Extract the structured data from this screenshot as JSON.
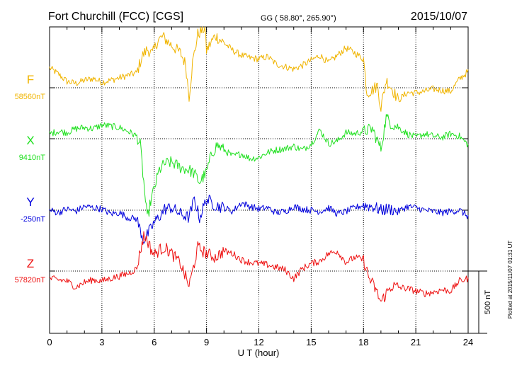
{
  "header": {
    "station": "Fort Churchill (FCC)  [CGS]",
    "coords": "GG ( 58.80°, 265.90°)",
    "date": "2015/10/07"
  },
  "footer": {
    "xlabel": "U T (hour)",
    "plotted": "Plotted at 2015/11/07 01:31  UT"
  },
  "scale": {
    "label": "500 nT",
    "nT": 500
  },
  "chart_data": {
    "type": "line",
    "x_unit": "hour",
    "xlim": [
      0,
      24
    ],
    "xticks": [
      0,
      3,
      6,
      9,
      12,
      15,
      18,
      21,
      24
    ],
    "x_tick_labels": [
      "0",
      "3",
      "6",
      "9",
      "12",
      "15",
      "18",
      "21",
      "24"
    ],
    "grid": true,
    "series": [
      {
        "name": "F",
        "baseline_label": "58560nT",
        "baseline": 58560,
        "color": "#f0b400",
        "points": [
          [
            0,
            160
          ],
          [
            0.5,
            110
          ],
          [
            1,
            50
          ],
          [
            1.5,
            35
          ],
          [
            2,
            60
          ],
          [
            2.5,
            75
          ],
          [
            3,
            45
          ],
          [
            3.5,
            60
          ],
          [
            4,
            80
          ],
          [
            4.5,
            100
          ],
          [
            5,
            120
          ],
          [
            5.3,
            250
          ],
          [
            5.6,
            310
          ],
          [
            5.9,
            270
          ],
          [
            6.2,
            380
          ],
          [
            6.5,
            410
          ],
          [
            7,
            340
          ],
          [
            7.5,
            280
          ],
          [
            7.8,
            190
          ],
          [
            8,
            -70
          ],
          [
            8.2,
            200
          ],
          [
            8.5,
            430
          ],
          [
            8.9,
            480
          ],
          [
            9,
            300
          ],
          [
            9.5,
            420
          ],
          [
            10,
            360
          ],
          [
            10.5,
            300
          ],
          [
            11,
            260
          ],
          [
            11.5,
            240
          ],
          [
            12,
            230
          ],
          [
            12.5,
            250
          ],
          [
            13,
            190
          ],
          [
            13.5,
            170
          ],
          [
            14,
            150
          ],
          [
            14.5,
            180
          ],
          [
            15,
            220
          ],
          [
            15.5,
            260
          ],
          [
            16,
            200
          ],
          [
            16.5,
            260
          ],
          [
            17,
            320
          ],
          [
            17.5,
            280
          ],
          [
            18,
            230
          ],
          [
            18.2,
            -40
          ],
          [
            18.5,
            -20
          ],
          [
            18.8,
            20
          ],
          [
            19,
            -160
          ],
          [
            19.3,
            60
          ],
          [
            19.6,
            0
          ],
          [
            20,
            -100
          ],
          [
            20.5,
            -40
          ],
          [
            21,
            -40
          ],
          [
            21.5,
            -30
          ],
          [
            22,
            -10
          ],
          [
            22.5,
            -20
          ],
          [
            23,
            -30
          ],
          [
            23.5,
            70
          ],
          [
            24,
            130
          ]
        ]
      },
      {
        "name": "X",
        "baseline_label": "9410nT",
        "baseline": 9410,
        "color": "#20e020",
        "points": [
          [
            0,
            40
          ],
          [
            0.5,
            60
          ],
          [
            1,
            50
          ],
          [
            1.5,
            80
          ],
          [
            2,
            90
          ],
          [
            2.5,
            80
          ],
          [
            3,
            110
          ],
          [
            3.5,
            100
          ],
          [
            4,
            90
          ],
          [
            4.5,
            60
          ],
          [
            5,
            20
          ],
          [
            5.2,
            -50
          ],
          [
            5.4,
            -350
          ],
          [
            5.6,
            -650
          ],
          [
            5.8,
            -500
          ],
          [
            6,
            -400
          ],
          [
            6.3,
            -250
          ],
          [
            6.6,
            -200
          ],
          [
            7,
            -190
          ],
          [
            7.5,
            -230
          ],
          [
            8,
            -250
          ],
          [
            8.3,
            -280
          ],
          [
            8.6,
            -350
          ],
          [
            9,
            -270
          ],
          [
            9.3,
            -120
          ],
          [
            9.6,
            -50
          ],
          [
            10,
            -90
          ],
          [
            10.5,
            -140
          ],
          [
            11,
            -120
          ],
          [
            11.5,
            -160
          ],
          [
            12,
            -150
          ],
          [
            12.5,
            -110
          ],
          [
            13,
            -90
          ],
          [
            13.5,
            -80
          ],
          [
            14,
            -60
          ],
          [
            14.5,
            -90
          ],
          [
            15,
            -40
          ],
          [
            15.5,
            70
          ],
          [
            16,
            -40
          ],
          [
            16.5,
            -20
          ],
          [
            17,
            50
          ],
          [
            17.5,
            40
          ],
          [
            18,
            60
          ],
          [
            18.5,
            80
          ],
          [
            19,
            -80
          ],
          [
            19.3,
            170
          ],
          [
            19.6,
            120
          ],
          [
            20,
            90
          ],
          [
            20.5,
            40
          ],
          [
            21,
            10
          ],
          [
            21.5,
            40
          ],
          [
            22,
            20
          ],
          [
            22.5,
            10
          ],
          [
            23,
            40
          ],
          [
            23.5,
            20
          ],
          [
            24,
            -50
          ]
        ]
      },
      {
        "name": "Y",
        "baseline_label": "-250nT",
        "baseline": -250,
        "color": "#0000dd",
        "points": [
          [
            0,
            0
          ],
          [
            0.5,
            -20
          ],
          [
            1,
            10
          ],
          [
            1.5,
            -10
          ],
          [
            2,
            30
          ],
          [
            2.5,
            20
          ],
          [
            3,
            10
          ],
          [
            3.5,
            -30
          ],
          [
            4,
            -20
          ],
          [
            4.5,
            -60
          ],
          [
            5,
            -70
          ],
          [
            5.2,
            -160
          ],
          [
            5.4,
            -240
          ],
          [
            5.6,
            -200
          ],
          [
            5.8,
            -150
          ],
          [
            6,
            -100
          ],
          [
            6.3,
            -50
          ],
          [
            6.6,
            10
          ],
          [
            7,
            20
          ],
          [
            7.5,
            -30
          ],
          [
            8,
            -60
          ],
          [
            8.3,
            90
          ],
          [
            8.6,
            -60
          ],
          [
            9,
            90
          ],
          [
            9.5,
            40
          ],
          [
            10,
            20
          ],
          [
            10.5,
            -10
          ],
          [
            11,
            60
          ],
          [
            11.5,
            30
          ],
          [
            12,
            10
          ],
          [
            12.5,
            20
          ],
          [
            13,
            -20
          ],
          [
            13.5,
            -10
          ],
          [
            14,
            30
          ],
          [
            14.5,
            10
          ],
          [
            15,
            0
          ],
          [
            15.5,
            -10
          ],
          [
            16,
            20
          ],
          [
            16.5,
            -30
          ],
          [
            17,
            -10
          ],
          [
            17.5,
            20
          ],
          [
            18,
            40
          ],
          [
            18.5,
            30
          ],
          [
            19,
            0
          ],
          [
            19.5,
            10
          ],
          [
            20,
            -10
          ],
          [
            20.5,
            30
          ],
          [
            21,
            20
          ],
          [
            21.5,
            0
          ],
          [
            22,
            -10
          ],
          [
            22.5,
            -20
          ],
          [
            23,
            -10
          ],
          [
            23.5,
            0
          ],
          [
            24,
            -50
          ]
        ]
      },
      {
        "name": "Z",
        "baseline_label": "57820nT",
        "baseline": 57820,
        "color": "#ee1111",
        "points": [
          [
            0,
            -60
          ],
          [
            0.5,
            -70
          ],
          [
            1,
            -80
          ],
          [
            1.5,
            -130
          ],
          [
            2,
            -90
          ],
          [
            2.5,
            -70
          ],
          [
            3,
            -80
          ],
          [
            3.5,
            -60
          ],
          [
            4,
            -40
          ],
          [
            4.5,
            -20
          ],
          [
            5,
            20
          ],
          [
            5.2,
            160
          ],
          [
            5.4,
            280
          ],
          [
            5.6,
            250
          ],
          [
            5.8,
            180
          ],
          [
            6,
            130
          ],
          [
            6.3,
            170
          ],
          [
            6.6,
            190
          ],
          [
            7,
            140
          ],
          [
            7.5,
            60
          ],
          [
            8,
            -120
          ],
          [
            8.2,
            0
          ],
          [
            8.5,
            190
          ],
          [
            9,
            140
          ],
          [
            9.5,
            110
          ],
          [
            10,
            160
          ],
          [
            10.5,
            140
          ],
          [
            11,
            90
          ],
          [
            11.5,
            70
          ],
          [
            12,
            60
          ],
          [
            12.5,
            50
          ],
          [
            13,
            30
          ],
          [
            13.5,
            10
          ],
          [
            14,
            -60
          ],
          [
            14.5,
            20
          ],
          [
            15,
            60
          ],
          [
            15.5,
            80
          ],
          [
            16,
            140
          ],
          [
            16.5,
            160
          ],
          [
            17,
            70
          ],
          [
            17.5,
            110
          ],
          [
            18,
            90
          ],
          [
            18.3,
            -50
          ],
          [
            18.7,
            -150
          ],
          [
            19,
            -250
          ],
          [
            19.3,
            -180
          ],
          [
            19.6,
            -120
          ],
          [
            20,
            -130
          ],
          [
            20.5,
            -140
          ],
          [
            21,
            -160
          ],
          [
            21.5,
            -180
          ],
          [
            22,
            -170
          ],
          [
            22.5,
            -150
          ],
          [
            23,
            -160
          ],
          [
            23.5,
            -80
          ],
          [
            24,
            -60
          ]
        ]
      }
    ]
  }
}
